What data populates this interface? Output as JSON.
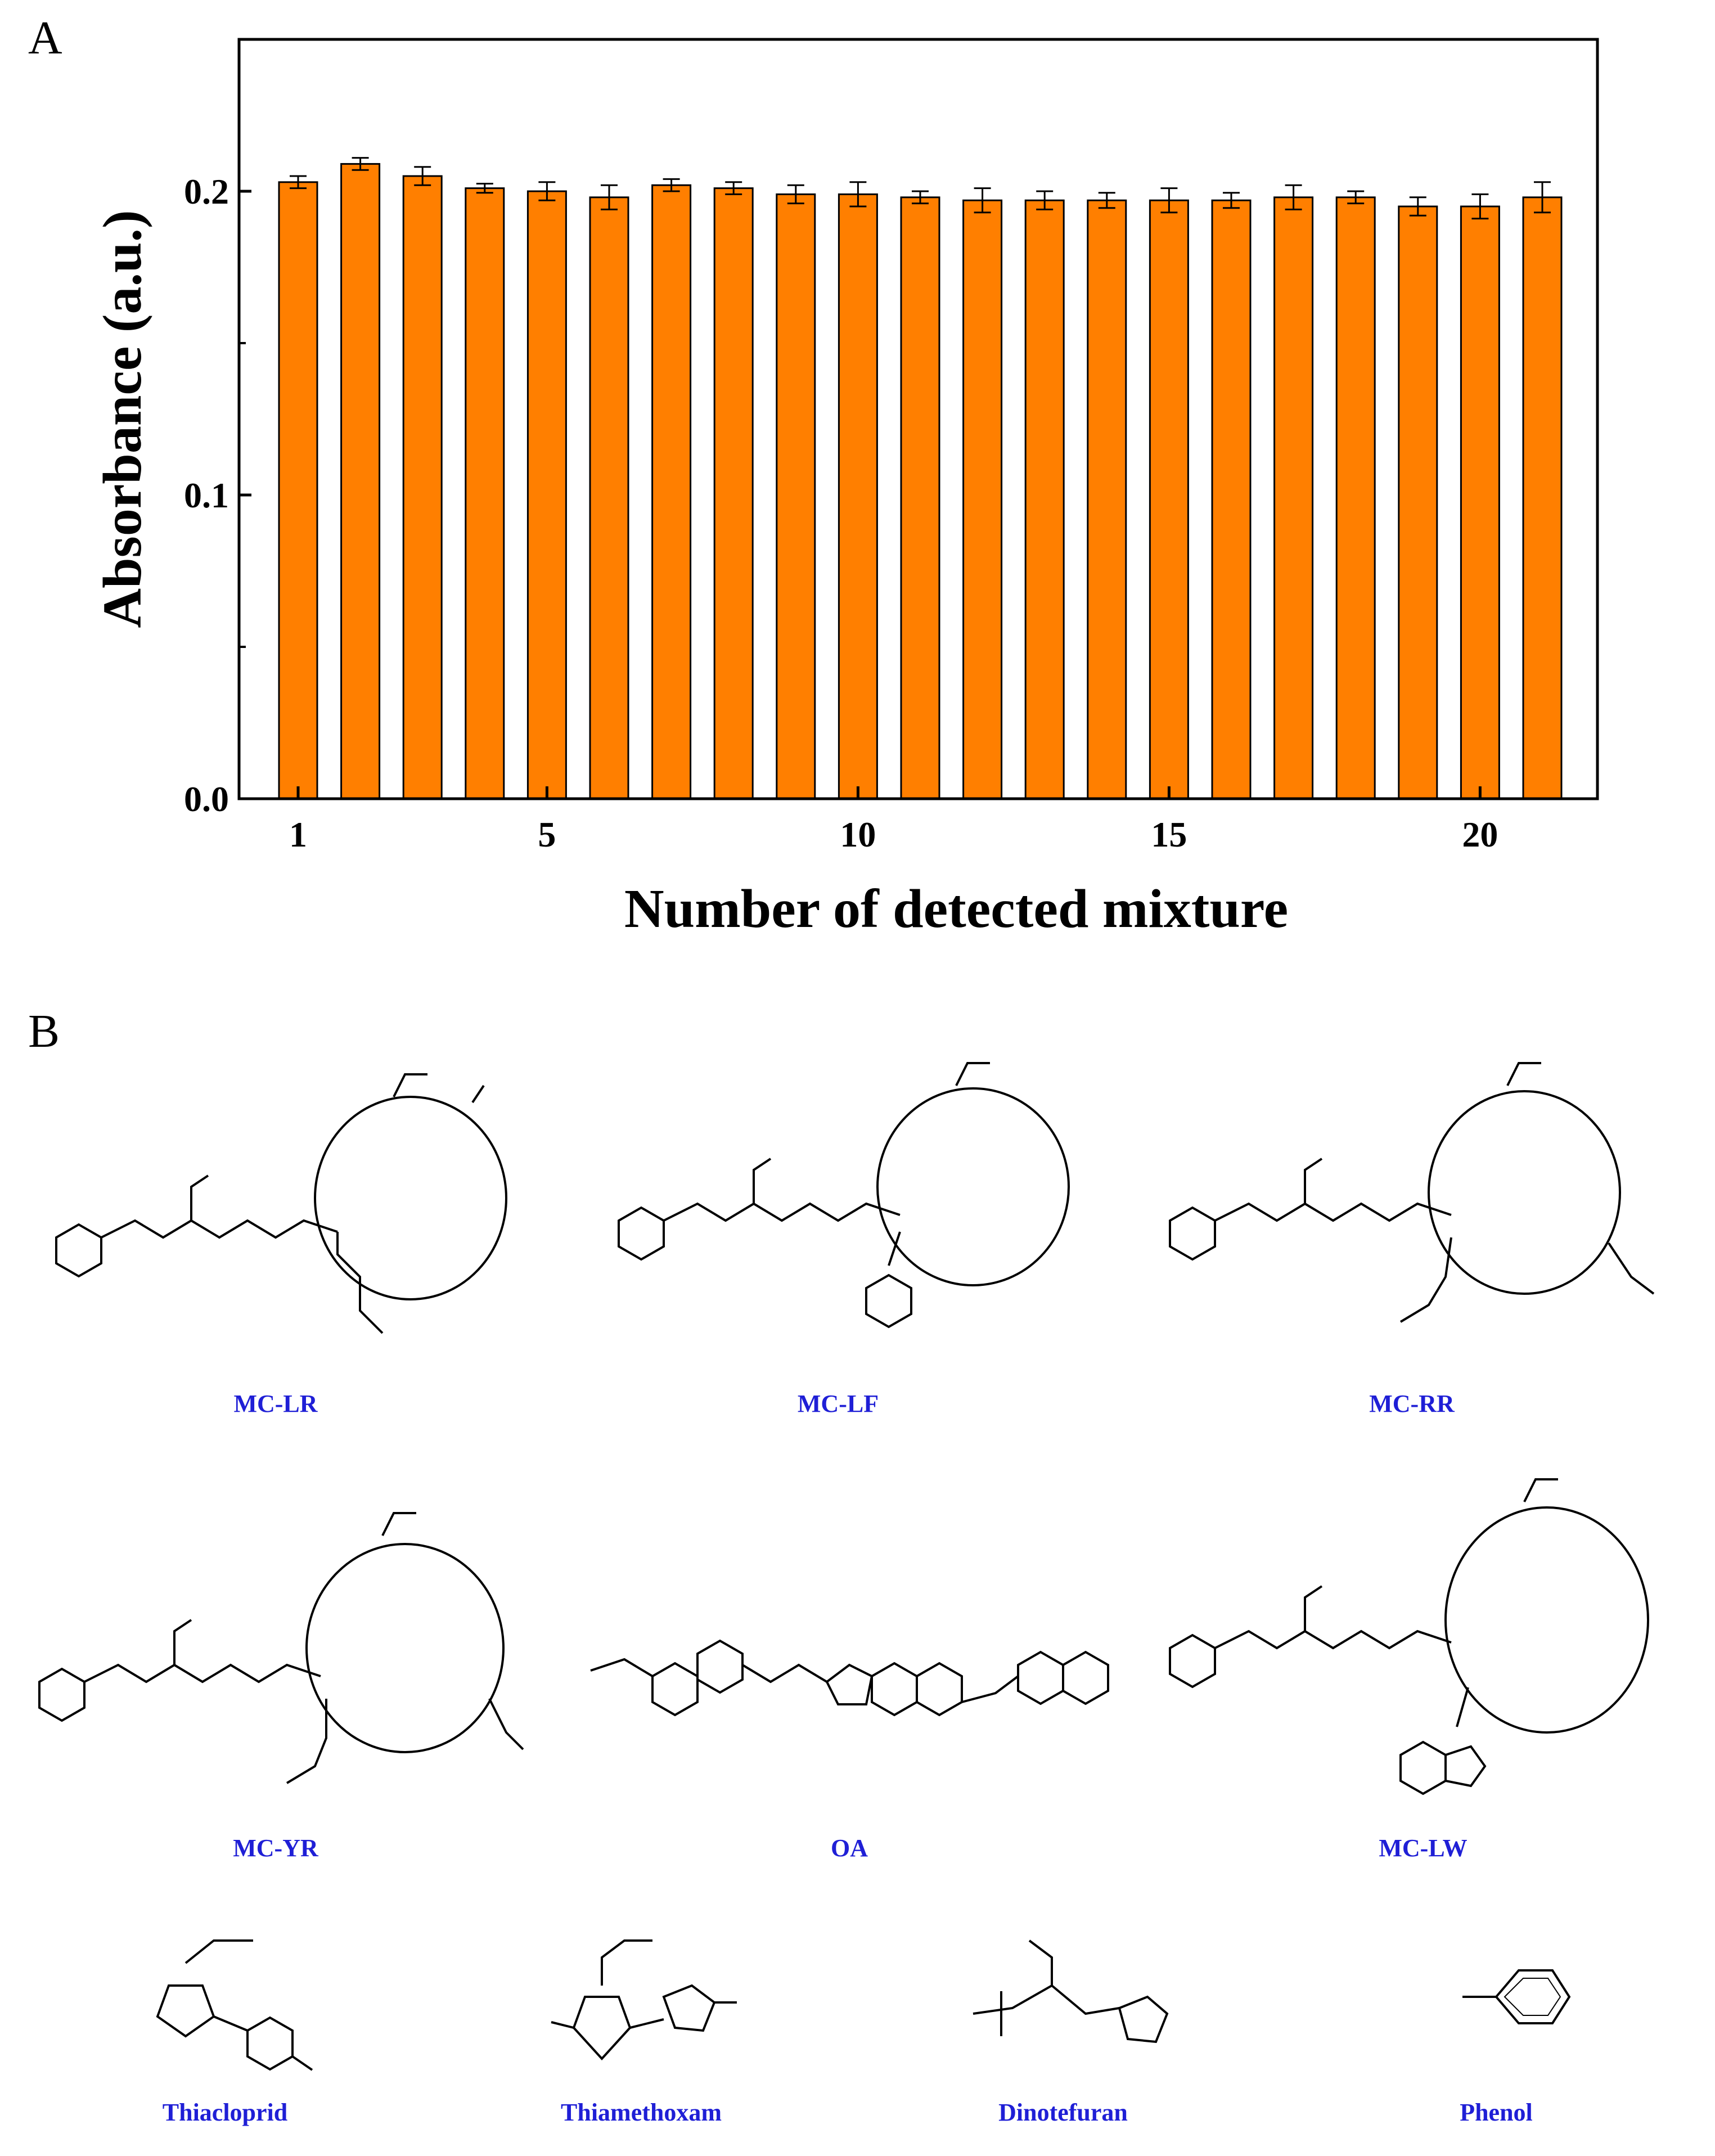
{
  "panels": {
    "a": "A",
    "b": "B"
  },
  "chart_data": {
    "type": "bar",
    "xlabel": "Number of detected mixture",
    "ylabel": "Absorbance (a.u.)",
    "ylim": [
      0,
      0.25
    ],
    "yticks": [
      {
        "value": 0.0,
        "label": "0.0"
      },
      {
        "value": 0.1,
        "label": "0.1"
      },
      {
        "value": 0.2,
        "label": "0.2"
      }
    ],
    "xticks": [
      {
        "value": 1,
        "label": "1"
      },
      {
        "value": 5,
        "label": "5"
      },
      {
        "value": 10,
        "label": "10"
      },
      {
        "value": 15,
        "label": "15"
      },
      {
        "value": 20,
        "label": "20"
      }
    ],
    "x": [
      1,
      2,
      3,
      4,
      5,
      6,
      7,
      8,
      9,
      10,
      11,
      12,
      13,
      14,
      15,
      16,
      17,
      18,
      19,
      20,
      21
    ],
    "values": [
      0.203,
      0.209,
      0.205,
      0.201,
      0.2,
      0.198,
      0.202,
      0.201,
      0.199,
      0.199,
      0.198,
      0.197,
      0.197,
      0.197,
      0.197,
      0.197,
      0.198,
      0.198,
      0.195,
      0.195,
      0.198
    ],
    "errors": [
      0.002,
      0.002,
      0.003,
      0.0015,
      0.003,
      0.004,
      0.002,
      0.002,
      0.003,
      0.004,
      0.002,
      0.004,
      0.003,
      0.0025,
      0.004,
      0.0025,
      0.004,
      0.002,
      0.003,
      0.004,
      0.005
    ],
    "bar_color": "#ff7f00",
    "grid": false
  },
  "compounds": [
    {
      "name": "MC-LR"
    },
    {
      "name": "MC-LF"
    },
    {
      "name": "MC-RR"
    },
    {
      "name": "MC-YR"
    },
    {
      "name": "OA"
    },
    {
      "name": "MC-LW"
    },
    {
      "name": "Thiacloprid"
    },
    {
      "name": "Thiamethoxam"
    },
    {
      "name": "Dinotefuran"
    },
    {
      "name": "Phenol"
    }
  ]
}
